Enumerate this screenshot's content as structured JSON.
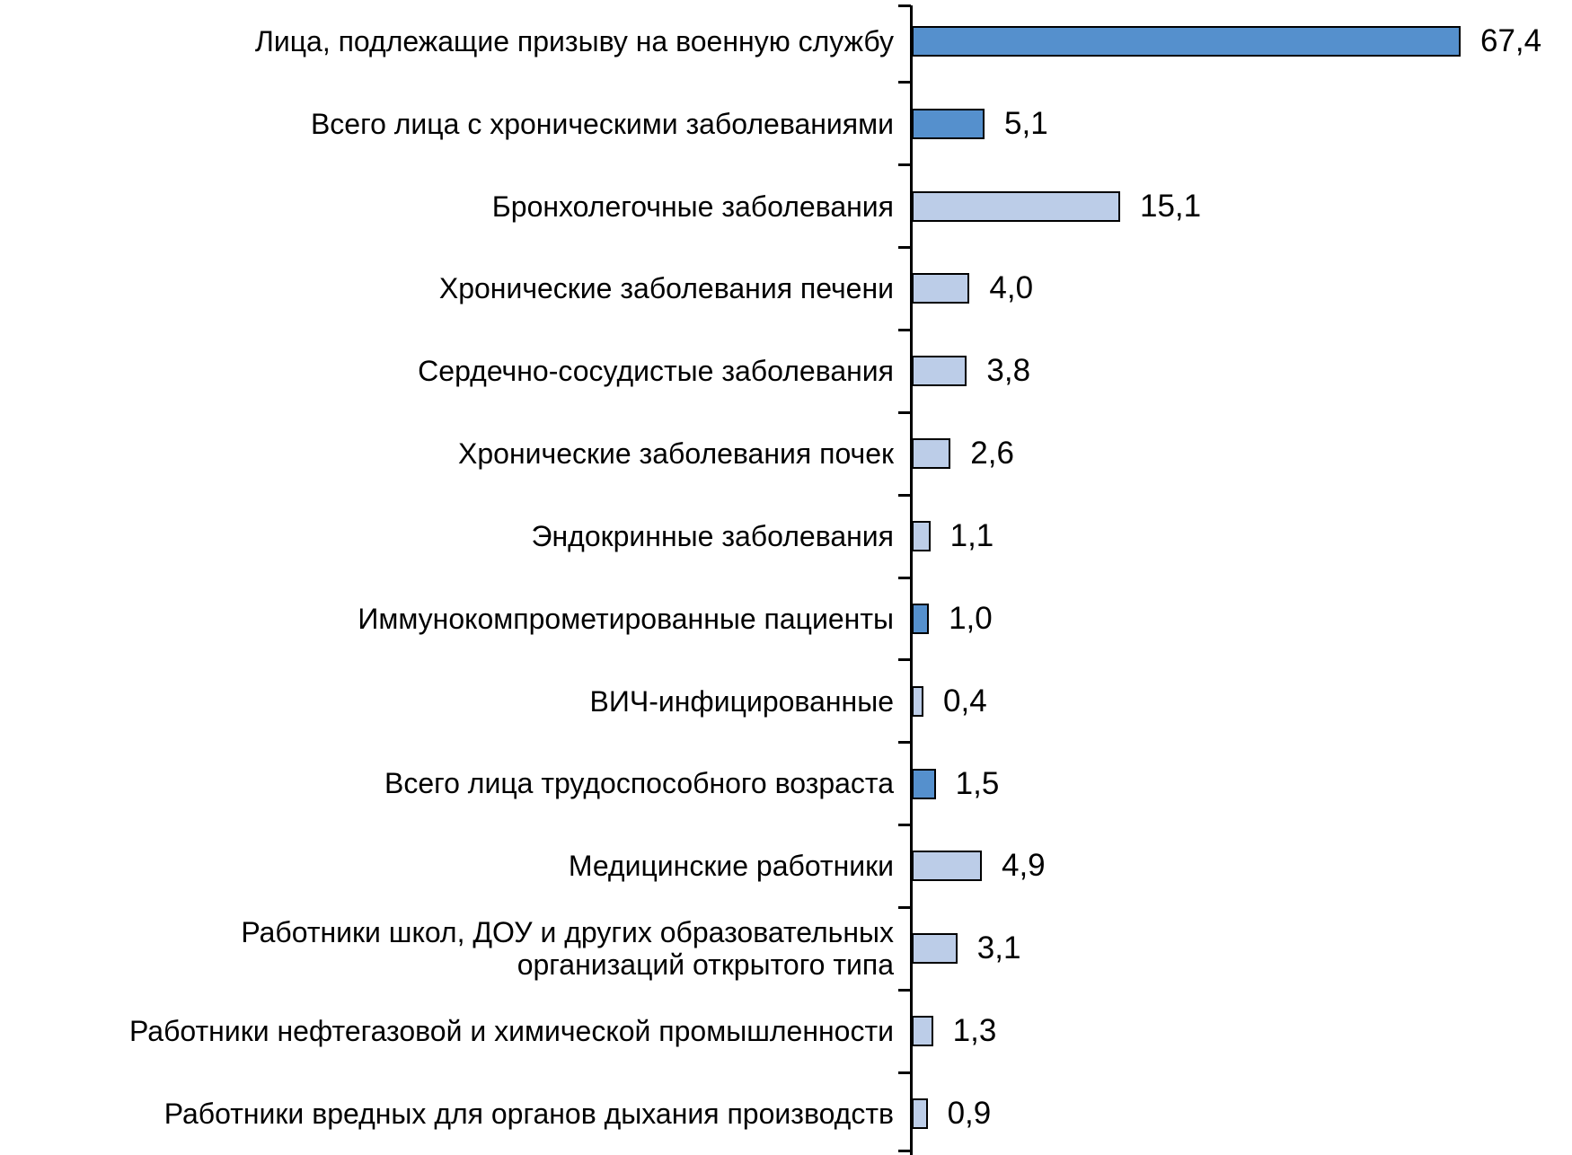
{
  "chart_data": {
    "type": "bar",
    "orientation": "horizontal",
    "grid": false,
    "legend": false,
    "decimal_separator": ",",
    "categories": [
      "Лица, подлежащие призыву на военную службу",
      "Всего лица с хроническими заболеваниями",
      "Бронхолегочные заболевания",
      "Хронические заболевания печени",
      "Сердечно-сосудистые заболевания",
      "Хронические заболевания почек",
      "Эндокринные заболевания",
      "Иммунокомпрометированные пациенты",
      "ВИЧ-инфицированные",
      "Всего лица трудоспособного возраста",
      "Медицинские работники",
      "Работники школ, ДОУ и других образовательных\nорганизаций открытого типа",
      "Работники нефтегазовой и химической промышленности",
      "Работники вредных для органов дыхания производств"
    ],
    "values": [
      67.4,
      5.1,
      15.1,
      4.0,
      3.8,
      2.6,
      1.1,
      1.0,
      0.4,
      1.5,
      4.9,
      3.1,
      1.3,
      0.9
    ],
    "value_labels": [
      "67,4",
      "5,1",
      "15,1",
      "4,0",
      "3,8",
      "2,6",
      "1,1",
      "1,0",
      "0,4",
      "1,5",
      "4,9",
      "3,1",
      "1,3",
      "0,9"
    ],
    "bar_tones": [
      "dark",
      "dark",
      "light",
      "light",
      "light",
      "light",
      "light",
      "dark",
      "light",
      "dark",
      "light",
      "light",
      "light",
      "light"
    ],
    "colors": {
      "dark": "#5590CD",
      "light": "#BCCDE8",
      "bar_border": "#000000",
      "axis": "#000000",
      "text": "#000000"
    }
  }
}
